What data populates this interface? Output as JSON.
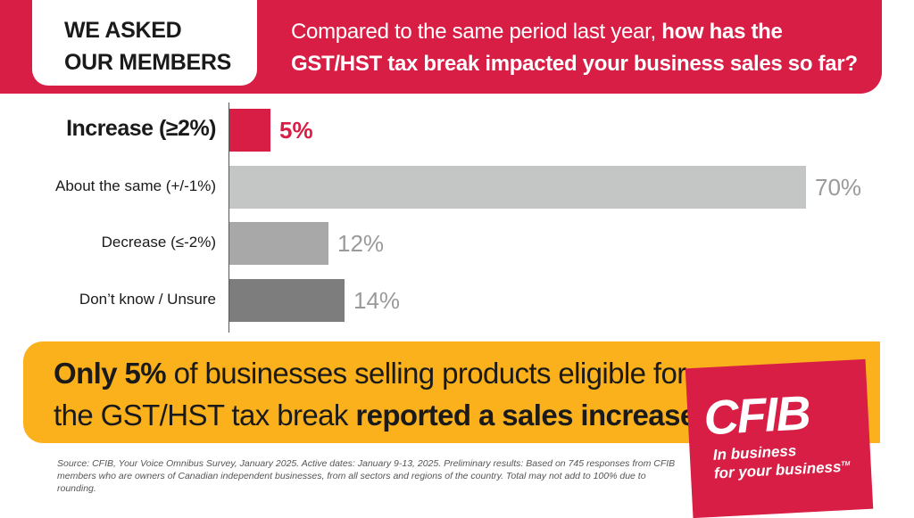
{
  "header": {
    "badge_line1": "WE ASKED",
    "badge_line2": "OUR MEMBERS",
    "question_plain": "Compared to the same period last year,",
    "question_bold": "how has the GST/HST tax break impacted your business sales so far?"
  },
  "chart_data": {
    "type": "bar",
    "orientation": "horizontal",
    "title": "Compared to the same period last year, how has the GST/HST tax break impacted your business sales so far?",
    "categories": [
      "Increase (≥2%)",
      "About the same (+/-1%)",
      "Decrease (≤-2%)",
      "Don’t know / Unsure"
    ],
    "values": [
      5,
      70,
      12,
      14
    ],
    "value_labels": [
      "5%",
      "70%",
      "12%",
      "14%"
    ],
    "highlight_index": 0,
    "colors": [
      "#d81e45",
      "#c4c5c5",
      "#a8a8a8",
      "#7d7d7d"
    ],
    "xlim": [
      0,
      70
    ],
    "unit": "%"
  },
  "banner": {
    "bold1": "Only 5%",
    "text1": "of businesses selling products eligible for the GST/HST tax break",
    "bold2": "reported a sales increase"
  },
  "source": "Source: CFIB, Your Voice Omnibus Survey, January 2025. Active dates: January 9-13, 2025. Preliminary results: Based on 745 responses from CFIB members who are owners of Canadian independent businesses, from all sectors and regions of the country. Total may not add to 100% due to rounding.",
  "logo": {
    "word": "CFIB",
    "tagline1": "In business",
    "tagline2": "for your business",
    "trademark": "TM"
  },
  "colors": {
    "brand_red": "#d81e45",
    "banner_yellow": "#fbb11b"
  }
}
